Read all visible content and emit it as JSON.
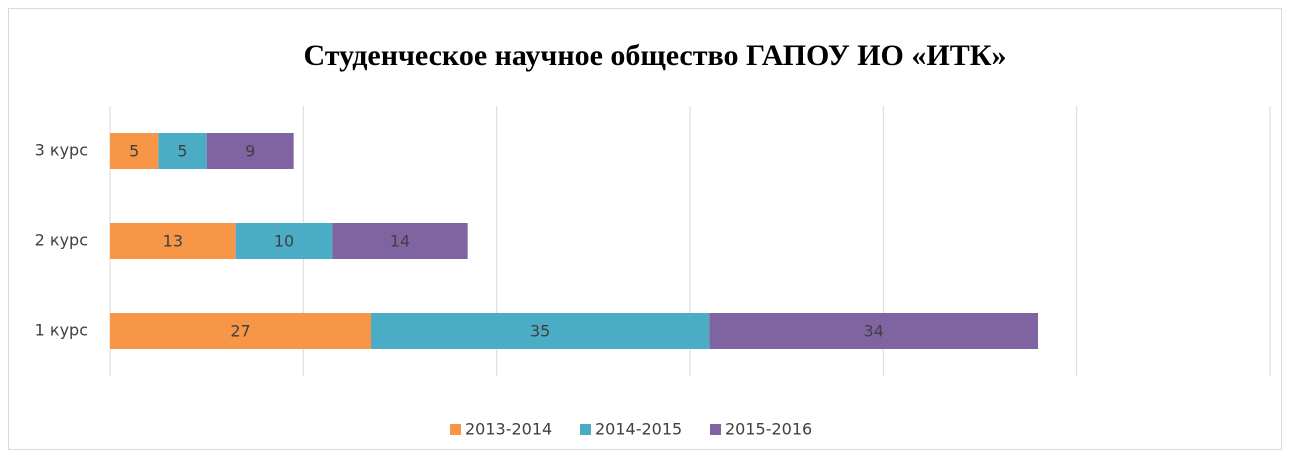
{
  "chart_data": {
    "type": "stacked_barh",
    "title": "Студенческое научное общество ГАПОУ ИО «ИТК»",
    "categories": [
      "1 курс",
      "2 курс",
      "3 курс"
    ],
    "series": [
      {
        "name": "2013-2014",
        "color": "#f79646",
        "values": [
          27,
          13,
          5
        ]
      },
      {
        "name": "2014-2015",
        "color": "#4bacc6",
        "values": [
          35,
          10,
          5
        ]
      },
      {
        "name": "2015-2016",
        "color": "#8064a2",
        "values": [
          34,
          14,
          9
        ]
      }
    ],
    "xlim": [
      0,
      120
    ],
    "xticks": [
      0,
      20,
      40,
      60,
      80,
      100,
      120
    ],
    "grid": true,
    "legend": "bottom"
  }
}
